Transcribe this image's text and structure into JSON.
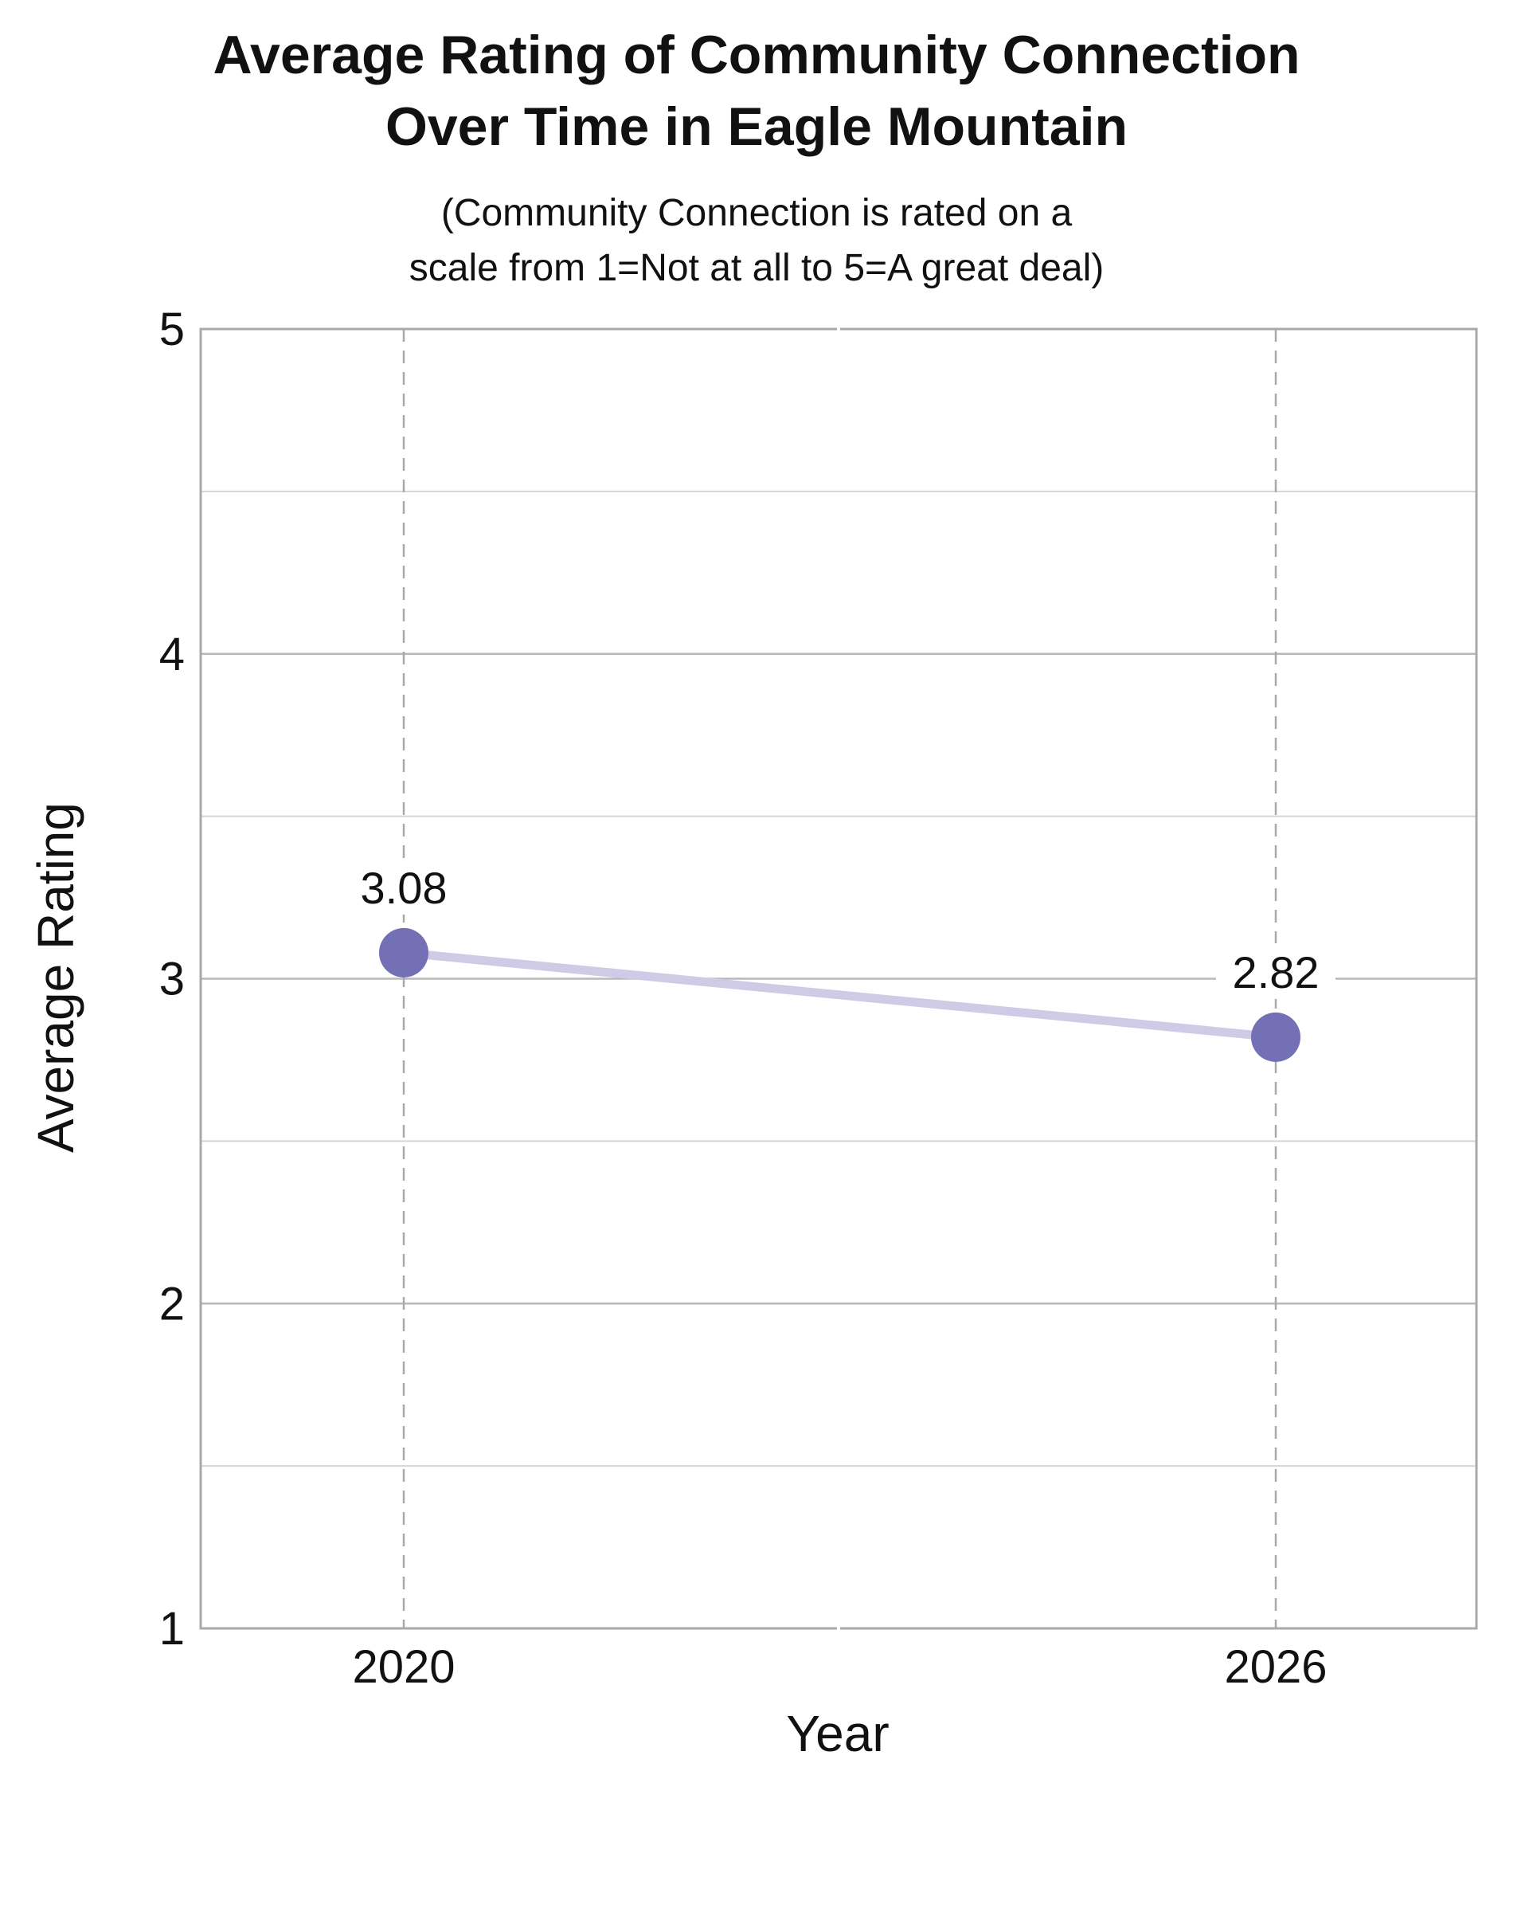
{
  "chart_data": {
    "type": "line",
    "title": [
      "Average Rating of Community Connection",
      "Over Time in Eagle Mountain"
    ],
    "subtitle": [
      "(Community Connection is rated on a",
      "scale from 1=Not at all to 5=A great deal)"
    ],
    "xlabel": "Year",
    "ylabel": "Average Rating",
    "categories": [
      "2020",
      "2026"
    ],
    "series": [
      {
        "values": [
          3.08,
          2.82
        ],
        "labels": [
          "3.08",
          "2.82"
        ]
      }
    ],
    "ylim": [
      1,
      5
    ],
    "yticks": [
      "1",
      "2",
      "3",
      "4",
      "5"
    ],
    "grid": true,
    "colors": {
      "line": "#cfcbe6",
      "marker": "#7470b5",
      "frame": "#a9a9a9",
      "grid_major": "#b8b8b8",
      "grid_minor": "#d5d5d5",
      "vertical_dash": "#a9a9a9"
    }
  }
}
